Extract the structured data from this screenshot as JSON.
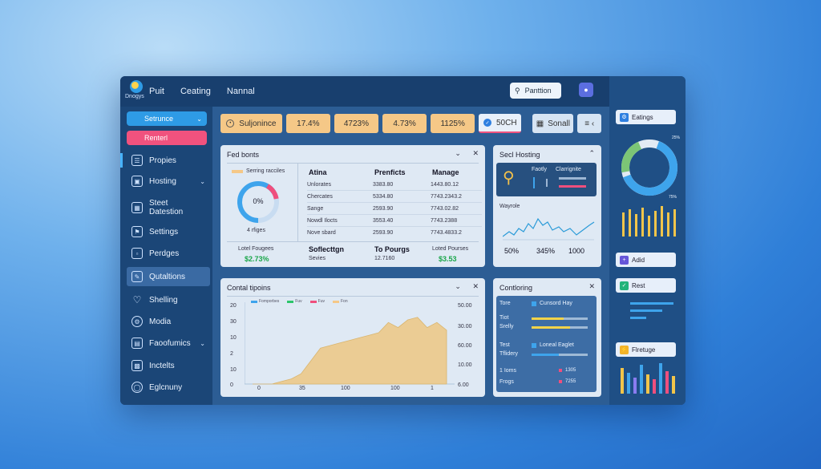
{
  "header": {
    "logo_text": "Dnogys",
    "menu": [
      "Puit",
      "Ceating",
      "Nannal"
    ],
    "search_label": "Panttion",
    "user_icon": "user-icon"
  },
  "sidebar": {
    "primary_button": "Setrunce",
    "secondary_button": "Renterl",
    "items": [
      {
        "label": "Propies",
        "icon": "file-icon"
      },
      {
        "label": "Hosting",
        "icon": "page-icon"
      },
      {
        "label": "Steet Datestion",
        "icon": "grid-icon"
      },
      {
        "label": "Settings",
        "icon": "flag-icon"
      },
      {
        "label": "Perdges",
        "icon": "doc-icon"
      },
      {
        "label": "Qutaltions",
        "icon": "chat-icon"
      },
      {
        "label": "Shelling",
        "icon": "heart-icon"
      },
      {
        "label": "Modia",
        "icon": "gear-icon"
      },
      {
        "label": "Faoofumics",
        "icon": "folder-icon"
      },
      {
        "label": "Inctelts",
        "icon": "chart-icon"
      },
      {
        "label": "Eglcnuny",
        "icon": "globe-icon"
      }
    ]
  },
  "stats": [
    "Suljonince",
    "17.4%",
    "4723%",
    "4.73%",
    "1125%",
    "50CH",
    "Sonall"
  ],
  "card_left": {
    "title": "Fed bonts",
    "legend": "Serring racciles",
    "donut_value": "0%",
    "donut_caption": "4 rfiges",
    "headers": [
      "Atina",
      "Prenficts",
      "Manage"
    ],
    "rows": [
      [
        "Unlorates",
        "3383.80",
        "1443.80.12"
      ],
      [
        "Chercates",
        "5334.80",
        "7743.2343.2"
      ],
      [
        "Sange",
        "2593.90",
        "7743.02.82"
      ],
      [
        "Nowdl Ilocts",
        "3553.40",
        "7743.2388"
      ],
      [
        "Nove sbard",
        "2593.90",
        "7743.4833.2"
      ]
    ],
    "footer": [
      {
        "label": "Lotel Fougees",
        "value": "$2.73%"
      },
      {
        "label": "Soflecttgn",
        "sub": "Sevies"
      },
      {
        "label": "To Pourgs",
        "sub": "12.7160"
      },
      {
        "label": "Loted Pourses",
        "value": "$3.53"
      }
    ]
  },
  "card_right_top": {
    "title": "Secl Hosting",
    "inner_labels": [
      "Faotly",
      "Clarrignite"
    ],
    "chart_label": "Wayrole",
    "numbers": [
      "50%",
      "345%",
      "1000"
    ]
  },
  "card_chart": {
    "title": "Contal tipoins",
    "legend": [
      "Fomporbes",
      "Fuv",
      "Fuv",
      "Fon"
    ],
    "y_left": [
      "20",
      "30",
      "10",
      "2",
      "10",
      "0"
    ],
    "y_right": [
      "50.00",
      "30.00",
      "60.00",
      "10.00",
      "6.00",
      "6.00"
    ],
    "x_labels": [
      "0",
      "35",
      "100",
      "100",
      "1"
    ]
  },
  "card_right_bottom": {
    "title": "Contloring",
    "rows": [
      {
        "a": "Tore",
        "b": "Cunsord Hay"
      },
      {
        "a": "Tiot",
        "b": ""
      },
      {
        "a": "Srelly",
        "b": ""
      },
      {
        "a": "Test",
        "b": "Loneal Eaglet"
      },
      {
        "a": "Tflidery",
        "b": ""
      },
      {
        "a": "1 Ioms",
        "b": "1305"
      },
      {
        "a": "Frogs",
        "b": "7255"
      }
    ]
  },
  "rightpanel": {
    "pills": [
      "Eatings",
      "Adid",
      "Rest",
      "Flretuge"
    ],
    "donut_labels": [
      "25%",
      "75%"
    ]
  },
  "chart_data": {
    "type": "area",
    "title": "Contal tipoins",
    "x": [
      0,
      1,
      2,
      3,
      4,
      5,
      6,
      7,
      8,
      9,
      10,
      11,
      12,
      13,
      14,
      15,
      16,
      17,
      18,
      19,
      20
    ],
    "values": [
      0,
      0,
      0,
      1,
      2,
      4,
      9,
      14,
      15,
      16,
      17,
      18,
      19,
      20,
      24,
      22,
      25,
      26,
      22,
      24,
      21
    ],
    "ylim": [
      0,
      30
    ]
  }
}
